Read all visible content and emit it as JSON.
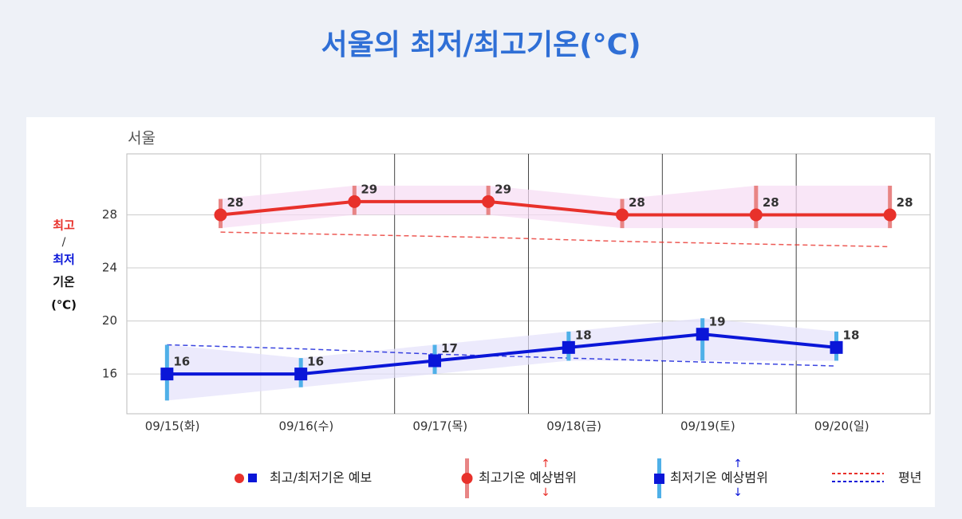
{
  "title": "서울의 최저/최고기온(°C)",
  "chart_data": {
    "type": "line",
    "subtitle": "서울",
    "y_label": [
      "최고",
      "/",
      "최저",
      "기온",
      "(℃)"
    ],
    "categories": [
      "09/15(화)",
      "09/16(수)",
      "09/17(목)",
      "09/18(금)",
      "09/19(토)",
      "09/20(일)"
    ],
    "ylim": [
      13,
      32.6
    ],
    "yticks": [
      16,
      20,
      24,
      28
    ],
    "grid": true,
    "series": [
      {
        "color": "#e8312b",
        "range_color": "#e88585",
        "band_color": "#f7dcf3",
        "values": [
          28,
          29,
          29,
          28,
          28,
          28
        ],
        "range_low": [
          27.0,
          28.0,
          28.0,
          27.0,
          27.0,
          27.0
        ],
        "range_high": [
          29.2,
          30.2,
          30.2,
          29.2,
          30.2,
          30.2
        ],
        "normal": [
          26.7,
          26.5,
          26.3,
          26.0,
          25.8,
          25.6
        ]
      },
      {
        "color": "#0a16d8",
        "range_color": "#4fb0e8",
        "band_color": "#e4e1fb",
        "values": [
          16,
          16,
          17,
          18,
          19,
          18
        ],
        "range_low": [
          14.0,
          15.0,
          16.0,
          17.0,
          17.0,
          17.0
        ],
        "range_high": [
          18.2,
          17.2,
          18.2,
          19.2,
          20.2,
          19.2
        ],
        "normal": [
          18.2,
          17.9,
          17.5,
          17.2,
          16.9,
          16.6
        ]
      }
    ],
    "legend": [
      "최고/최저기온 예보",
      "최고기온 예상범위",
      "최저기온 예상범위",
      "평년"
    ]
  }
}
